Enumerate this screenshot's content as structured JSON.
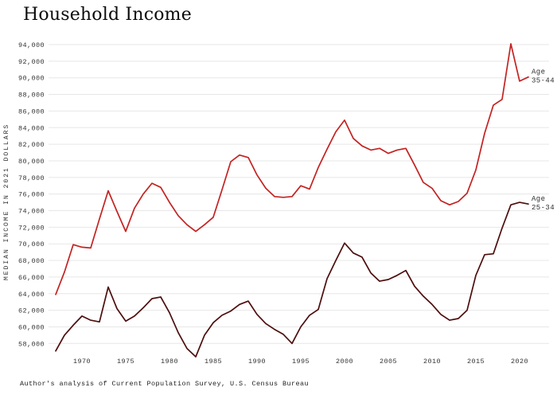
{
  "page": {
    "title": "Household Income",
    "source_note": "Author's analysis of Current Population Survey, U.S. Census Bureau"
  },
  "colors": {
    "line_age_35_44": "#c32322",
    "line_age_25_34": "#4e0d0d",
    "gridline": "#e7e7e7",
    "tick_text": "#333333",
    "background": "#ffffff"
  },
  "chart_data": {
    "type": "line",
    "title": "Household Income",
    "xlabel": "",
    "ylabel": "MEDIAN INCOME IN 2021 DOLLARS",
    "source": "Author's analysis of Current Population Survey, U.S. Census Bureau",
    "grid": "horizontal",
    "legend_position": "right-end-of-line",
    "x_range": [
      1967,
      2021
    ],
    "ylim": [
      56300,
      95200
    ],
    "x_ticks": [
      1970,
      1975,
      1980,
      1985,
      1990,
      1995,
      2000,
      2005,
      2010,
      2015,
      2020
    ],
    "y_ticks": [
      58000,
      60000,
      62000,
      64000,
      66000,
      68000,
      70000,
      72000,
      74000,
      76000,
      78000,
      80000,
      82000,
      84000,
      86000,
      88000,
      90000,
      92000,
      94000
    ],
    "x": [
      1967,
      1968,
      1969,
      1970,
      1971,
      1972,
      1973,
      1974,
      1975,
      1976,
      1977,
      1978,
      1979,
      1980,
      1981,
      1982,
      1983,
      1984,
      1985,
      1986,
      1987,
      1988,
      1989,
      1990,
      1991,
      1992,
      1993,
      1994,
      1995,
      1996,
      1997,
      1998,
      1999,
      2000,
      2001,
      2002,
      2003,
      2004,
      2005,
      2006,
      2007,
      2008,
      2009,
      2010,
      2011,
      2012,
      2013,
      2014,
      2015,
      2016,
      2017,
      2018,
      2019,
      2020,
      2021
    ],
    "series": [
      {
        "name": "Age 35-44",
        "label_lines": [
          "Age",
          "35-44"
        ],
        "color": "#c32322",
        "values": [
          63900,
          66600,
          69900,
          69600,
          69500,
          73000,
          76400,
          73900,
          71500,
          74300,
          76000,
          77300,
          76800,
          75000,
          73400,
          72300,
          71500,
          72300,
          73200,
          76500,
          79900,
          80700,
          80400,
          78300,
          76700,
          75700,
          75600,
          75700,
          77000,
          76600,
          79200,
          81400,
          83500,
          84900,
          82700,
          81800,
          81300,
          81500,
          80900,
          81300,
          81500,
          79500,
          77400,
          76700,
          75200,
          74700,
          75100,
          76100,
          78900,
          83300,
          86700,
          87400,
          94100,
          89600,
          90100
        ]
      },
      {
        "name": "Age 25-34",
        "label_lines": [
          "Age",
          "25-34"
        ],
        "color": "#4e0d0d",
        "values": [
          57100,
          59000,
          60200,
          61300,
          60800,
          60600,
          64800,
          62200,
          60700,
          61300,
          62300,
          63400,
          63600,
          61700,
          59300,
          57400,
          56400,
          59000,
          60500,
          61400,
          61900,
          62700,
          63100,
          61500,
          60400,
          59700,
          59100,
          58000,
          60000,
          61400,
          62100,
          65800,
          68000,
          70100,
          68900,
          68400,
          66500,
          65500,
          65700,
          66200,
          66800,
          64900,
          63700,
          62700,
          61500,
          60800,
          61000,
          62000,
          66200,
          68700,
          68800,
          71900,
          74700,
          75000,
          74800
        ]
      }
    ]
  }
}
